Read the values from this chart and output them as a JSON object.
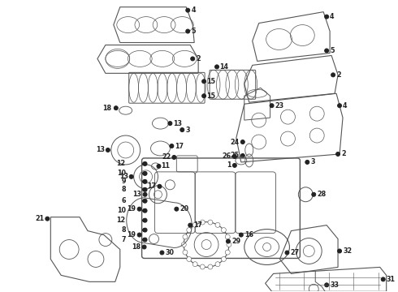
{
  "bg_color": "#ffffff",
  "line_color": "#555555",
  "dark_color": "#222222",
  "label_fontsize": 5.8,
  "fig_width": 4.9,
  "fig_height": 3.6,
  "dpi": 100
}
